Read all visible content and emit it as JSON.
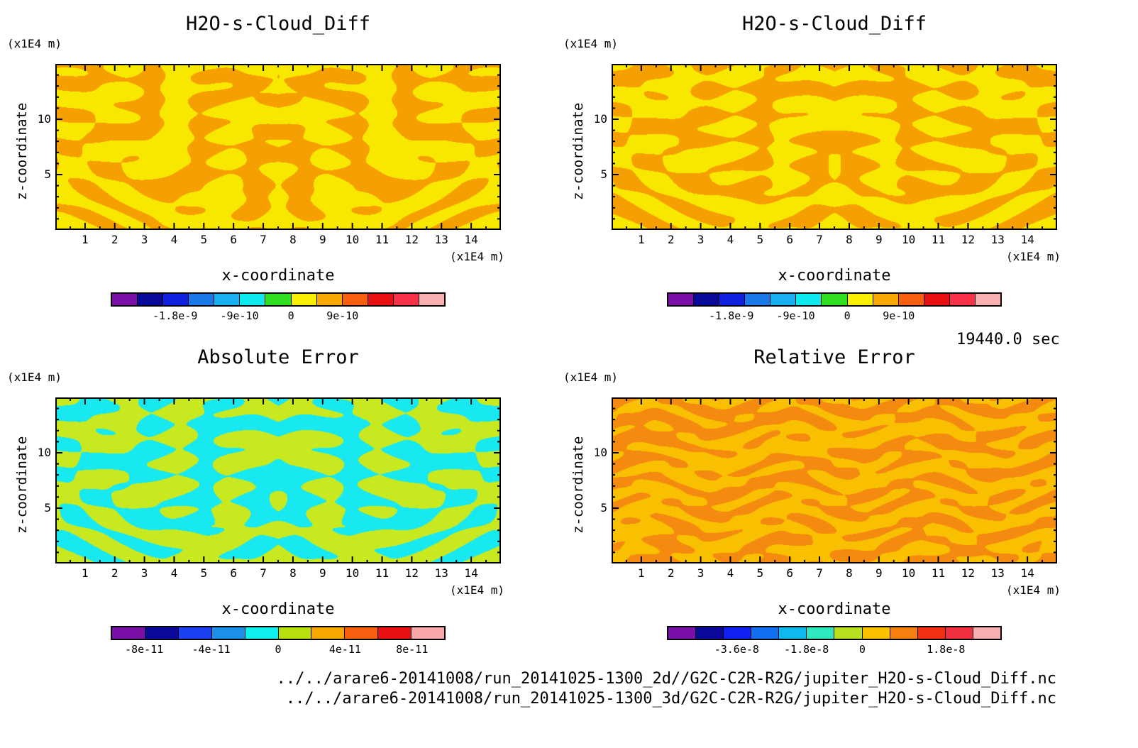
{
  "time_label": "19440.0 sec",
  "files": [
    "../../arare6-20141008/run_20141025-1300_2d//G2C-C2R-R2G/jupiter_H2O-s-Cloud_Diff.nc",
    "../../arare6-20141008/run_20141025-1300_3d/G2C-C2R-R2G/jupiter_H2O-s-Cloud_Diff.nc"
  ],
  "chart_data": [
    {
      "type": "heatmap",
      "title": "H2O-s-Cloud_Diff",
      "xlabel": "x-coordinate",
      "ylabel": "z-coordinate",
      "x_unit": "(x1E4 m)",
      "y_unit": "(x1E4 m)",
      "x_ticks": [
        "1",
        "2",
        "3",
        "4",
        "5",
        "6",
        "7",
        "8",
        "9",
        "10",
        "11",
        "12",
        "13",
        "14"
      ],
      "y_ticks": [
        "5",
        "10"
      ],
      "xlim": [
        0,
        15
      ],
      "ylim": [
        0,
        15
      ],
      "colorbar": {
        "colors": [
          "#7a10a8",
          "#0a0a9a",
          "#1020e0",
          "#1a78e8",
          "#18b0f0",
          "#10e8f0",
          "#30e020",
          "#f8f000",
          "#f8a800",
          "#f86010",
          "#e81010",
          "#f83048",
          "#f8b0b0"
        ],
        "labels": [
          "-1.8e-9",
          "-9e-10",
          "0",
          "9e-10"
        ]
      },
      "palette": [
        "#f8e800",
        "#f5a000"
      ]
    },
    {
      "type": "heatmap",
      "title": "H2O-s-Cloud_Diff",
      "xlabel": "x-coordinate",
      "ylabel": "z-coordinate",
      "x_unit": "(x1E4 m)",
      "y_unit": "(x1E4 m)",
      "x_ticks": [
        "1",
        "2",
        "3",
        "4",
        "5",
        "6",
        "7",
        "8",
        "9",
        "10",
        "11",
        "12",
        "13",
        "14"
      ],
      "y_ticks": [
        "5",
        "10"
      ],
      "xlim": [
        0,
        15
      ],
      "ylim": [
        0,
        15
      ],
      "colorbar": {
        "colors": [
          "#7a10a8",
          "#0a0a9a",
          "#1020e0",
          "#1a78e8",
          "#18b0f0",
          "#10e8f0",
          "#30e020",
          "#f8f000",
          "#f8a800",
          "#f86010",
          "#e81010",
          "#f83048",
          "#f8b0b0"
        ],
        "labels": [
          "-1.8e-9",
          "-9e-10",
          "0",
          "9e-10"
        ]
      },
      "palette": [
        "#f8e800",
        "#f5a000"
      ]
    },
    {
      "type": "heatmap",
      "title": "Absolute Error",
      "xlabel": "x-coordinate",
      "ylabel": "z-coordinate",
      "x_unit": "(x1E4 m)",
      "y_unit": "(x1E4 m)",
      "x_ticks": [
        "1",
        "2",
        "3",
        "4",
        "5",
        "6",
        "7",
        "8",
        "9",
        "10",
        "11",
        "12",
        "13",
        "14"
      ],
      "y_ticks": [
        "5",
        "10"
      ],
      "xlim": [
        0,
        15
      ],
      "ylim": [
        0,
        15
      ],
      "colorbar": {
        "colors": [
          "#7a10a8",
          "#0a0a9a",
          "#1a40f0",
          "#1a90e8",
          "#10f0f0",
          "#b8e010",
          "#f8a800",
          "#f86010",
          "#e81010",
          "#f8a8a8"
        ],
        "labels": [
          "-8e-11",
          "-4e-11",
          "0",
          "4e-11",
          "8e-11"
        ]
      },
      "palette": [
        "#c8e820",
        "#18e8f0"
      ]
    },
    {
      "type": "heatmap",
      "title": "Relative Error",
      "xlabel": "x-coordinate",
      "ylabel": "z-coordinate",
      "x_unit": "(x1E4 m)",
      "y_unit": "(x1E4 m)",
      "x_ticks": [
        "1",
        "2",
        "3",
        "4",
        "5",
        "6",
        "7",
        "8",
        "9",
        "10",
        "11",
        "12",
        "13",
        "14"
      ],
      "y_ticks": [
        "5",
        "10"
      ],
      "xlim": [
        0,
        15
      ],
      "ylim": [
        0,
        15
      ],
      "colorbar": {
        "colors": [
          "#7a10a8",
          "#0a0a9a",
          "#1020f0",
          "#1070f0",
          "#10b8f0",
          "#30e8c0",
          "#b8e020",
          "#f8c000",
          "#f88010",
          "#f03010",
          "#f03040",
          "#f8b0b0"
        ],
        "labels": [
          "-3.6e-8",
          "-1.8e-8",
          "0",
          "1.8e-8"
        ]
      },
      "palette": [
        "#f8c000",
        "#f58a10"
      ]
    }
  ]
}
